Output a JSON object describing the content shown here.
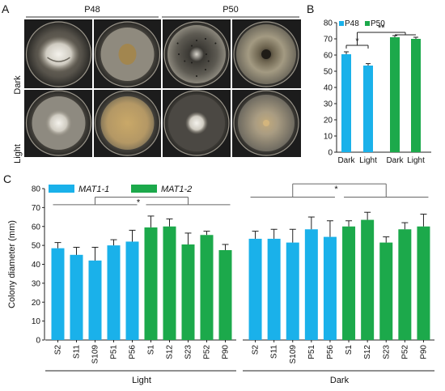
{
  "panel_a": {
    "letter": "A",
    "groups": [
      "P48",
      "P50"
    ],
    "row_labels": [
      "Dark",
      "Light"
    ],
    "plates": [
      {
        "group": "P48",
        "condition": "Dark",
        "style": "white-fluffy"
      },
      {
        "group": "P48",
        "condition": "Dark",
        "style": "brown-center"
      },
      {
        "group": "P50",
        "condition": "Dark",
        "style": "dark-dotted"
      },
      {
        "group": "P50",
        "condition": "Dark",
        "style": "olive-ring"
      },
      {
        "group": "P48",
        "condition": "Light",
        "style": "white-center"
      },
      {
        "group": "P48",
        "condition": "Light",
        "style": "yellow-disc"
      },
      {
        "group": "P50",
        "condition": "Light",
        "style": "white-center-dark"
      },
      {
        "group": "P50",
        "condition": "Light",
        "style": "pale-disc"
      }
    ]
  },
  "colors": {
    "mat11": "#1ab1ea",
    "mat12": "#1ca94b",
    "axis": "#222222",
    "plate_bg": "#1c1c1c"
  },
  "chart_data": [
    {
      "panel": "B",
      "type": "bar",
      "categories": [
        "Dark",
        "Light",
        "Dark",
        "Light"
      ],
      "legend": [
        "P48",
        "P50"
      ],
      "series_of_bar": [
        "P48",
        "P48",
        "P50",
        "P50"
      ],
      "values": [
        60.5,
        53.5,
        71,
        70
      ],
      "errors": [
        1.5,
        1.2,
        1.0,
        1.0
      ],
      "ylim": [
        0,
        80
      ],
      "yticks": [
        0,
        10,
        20,
        30,
        40,
        50,
        60,
        70,
        80
      ],
      "significance": [
        {
          "label": "*",
          "between": [
            0,
            1
          ]
        },
        {
          "label": "**",
          "between": [
            "P48",
            "P50"
          ]
        }
      ]
    },
    {
      "panel": "C",
      "type": "bar",
      "ylabel": "Colony diameter (mm)",
      "ylim": [
        0,
        80
      ],
      "yticks": [
        0,
        10,
        20,
        30,
        40,
        50,
        60,
        70,
        80
      ],
      "legend": [
        "MAT1-1",
        "MAT1-2"
      ],
      "groups": [
        {
          "label": "Light",
          "categories": [
            "S2",
            "S11",
            "S109",
            "P51",
            "P56",
            "S1",
            "S12",
            "S23",
            "P52",
            "P90"
          ],
          "mating_type": [
            "MAT1-1",
            "MAT1-1",
            "MAT1-1",
            "MAT1-1",
            "MAT1-1",
            "MAT1-2",
            "MAT1-2",
            "MAT1-2",
            "MAT1-2",
            "MAT1-2"
          ],
          "values": [
            48.5,
            45,
            42,
            50,
            52,
            59.5,
            60,
            50.5,
            55.5,
            47.5
          ],
          "errors": [
            3,
            4,
            7,
            3,
            6,
            6,
            4,
            6,
            2,
            3
          ],
          "significance": "*"
        },
        {
          "label": "Dark",
          "categories": [
            "S2",
            "S11",
            "S109",
            "P51",
            "P56",
            "S1",
            "S12",
            "S23",
            "P52",
            "P90"
          ],
          "mating_type": [
            "MAT1-1",
            "MAT1-1",
            "MAT1-1",
            "MAT1-1",
            "MAT1-1",
            "MAT1-2",
            "MAT1-2",
            "MAT1-2",
            "MAT1-2",
            "MAT1-2"
          ],
          "values": [
            53.5,
            53.5,
            51.5,
            58.5,
            54.5,
            60,
            63.5,
            51.5,
            58.5,
            60
          ],
          "errors": [
            4,
            5,
            7,
            6.5,
            8.5,
            3,
            4,
            3,
            3.5,
            6.5
          ],
          "significance": "*"
        }
      ]
    }
  ]
}
